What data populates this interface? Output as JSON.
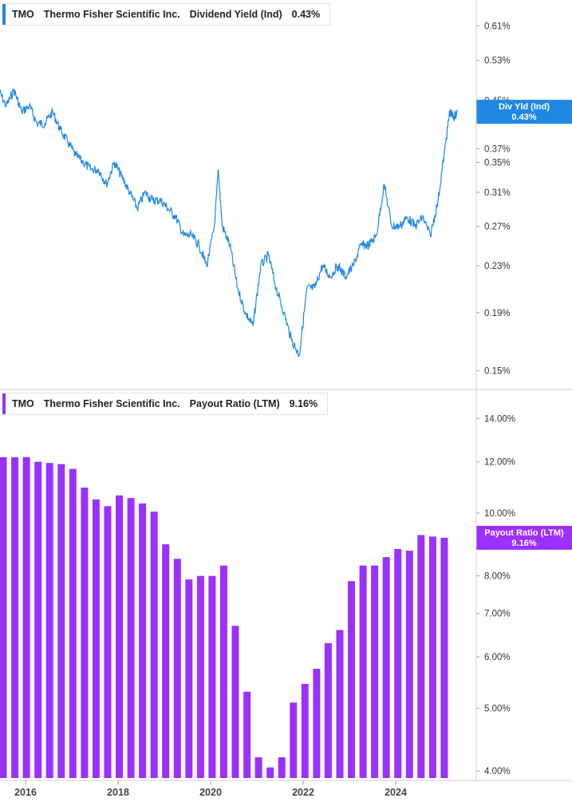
{
  "colors": {
    "yield_line": "#1e88e5",
    "payout_bar": "#9b30ff",
    "axis": "#cfcfcf"
  },
  "top_panel": {
    "legend": {
      "ticker": "TMO",
      "company": "Thermo Fisher Scientific Inc.",
      "metric": "Dividend Yield (Ind)",
      "value": "0.43%"
    },
    "badge": {
      "label": "Div Yld (Ind)",
      "value": "0.43%"
    }
  },
  "bottom_panel": {
    "legend": {
      "ticker": "TMO",
      "company": "Thermo Fisher Scientific Inc.",
      "metric": "Payout Ratio (LTM)",
      "value": "9.16%"
    },
    "badge": {
      "label": "Payout Ratio (LTM)",
      "value": "9.16%"
    }
  },
  "chart_data": [
    {
      "type": "line",
      "series": [
        {
          "x": [
            "2015-06",
            "2015-08",
            "2015-10",
            "2015-12",
            "2016-02",
            "2016-04",
            "2016-06",
            "2016-08",
            "2016-10",
            "2016-12",
            "2017-02",
            "2017-04",
            "2017-06",
            "2017-08",
            "2017-10",
            "2017-12",
            "2018-02",
            "2018-04",
            "2018-06",
            "2018-08",
            "2018-10",
            "2018-12",
            "2019-02",
            "2019-04",
            "2019-06",
            "2019-08",
            "2019-10",
            "2019-12",
            "2020-02",
            "2020-03",
            "2020-04",
            "2020-06",
            "2020-08",
            "2020-10",
            "2020-12",
            "2021-02",
            "2021-04",
            "2021-06",
            "2021-08",
            "2021-10",
            "2021-12",
            "2022-02",
            "2022-04",
            "2022-06",
            "2022-08",
            "2022-10",
            "2022-12",
            "2023-02",
            "2023-04",
            "2023-06",
            "2023-08",
            "2023-10",
            "2023-12",
            "2024-02",
            "2024-04",
            "2024-06",
            "2024-08",
            "2024-10",
            "2024-12",
            "2025-02",
            "2025-03",
            "2025-04",
            "2025-05"
          ],
          "values": [
            0.47,
            0.44,
            0.47,
            0.43,
            0.44,
            0.41,
            0.41,
            0.43,
            0.4,
            0.38,
            0.36,
            0.35,
            0.34,
            0.34,
            0.32,
            0.35,
            0.33,
            0.31,
            0.29,
            0.31,
            0.3,
            0.3,
            0.29,
            0.28,
            0.26,
            0.26,
            0.25,
            0.23,
            0.27,
            0.34,
            0.27,
            0.25,
            0.21,
            0.19,
            0.18,
            0.23,
            0.24,
            0.21,
            0.19,
            0.17,
            0.16,
            0.21,
            0.21,
            0.23,
            0.22,
            0.23,
            0.22,
            0.23,
            0.25,
            0.25,
            0.26,
            0.32,
            0.27,
            0.27,
            0.28,
            0.27,
            0.28,
            0.26,
            0.3,
            0.38,
            0.43,
            0.42,
            0.43
          ]
        }
      ],
      "y_scale": "log",
      "ylim": [
        0.14,
        0.66
      ],
      "y_ticks": [
        "0.61%",
        "0.53%",
        "0.45%",
        "0.37%",
        "0.35%",
        "0.31%",
        "0.27%",
        "0.23%",
        "0.19%",
        "0.15%"
      ],
      "grid": false
    },
    {
      "type": "bar",
      "categories": [
        "2015-Q2",
        "2015-Q3",
        "2015-Q4",
        "2016-Q1",
        "2016-Q2",
        "2016-Q3",
        "2016-Q4",
        "2017-Q1",
        "2017-Q2",
        "2017-Q3",
        "2017-Q4",
        "2018-Q1",
        "2018-Q2",
        "2018-Q3",
        "2018-Q4",
        "2019-Q1",
        "2019-Q2",
        "2019-Q3",
        "2019-Q4",
        "2020-Q1",
        "2020-Q2",
        "2020-Q3",
        "2020-Q4",
        "2021-Q1",
        "2021-Q2",
        "2021-Q3",
        "2021-Q4",
        "2022-Q1",
        "2022-Q2",
        "2022-Q3",
        "2022-Q4",
        "2023-Q1",
        "2023-Q2",
        "2023-Q3",
        "2023-Q4",
        "2024-Q1",
        "2024-Q2",
        "2024-Q3",
        "2024-Q4",
        "2025-Q1"
      ],
      "values": [
        12.2,
        12.2,
        12.2,
        12.0,
        11.95,
        11.9,
        11.7,
        10.95,
        10.5,
        10.25,
        10.65,
        10.55,
        10.35,
        10.05,
        8.95,
        8.5,
        7.9,
        8.0,
        8.0,
        8.3,
        6.7,
        5.3,
        4.2,
        4.05,
        4.2,
        5.1,
        5.45,
        5.75,
        6.3,
        6.6,
        7.85,
        8.3,
        8.3,
        8.55,
        8.8,
        8.75,
        9.25,
        9.2,
        9.16,
        null
      ],
      "y_scale": "log",
      "ylim": [
        3.9,
        15.0
      ],
      "y_ticks": [
        "14.00%",
        "12.00%",
        "10.00%",
        "8.00%",
        "7.00%",
        "6.00%",
        "5.00%",
        "4.00%"
      ],
      "x_tick_labels": [
        "2016",
        "2018",
        "2020",
        "2022",
        "2024"
      ],
      "grid": false
    }
  ]
}
